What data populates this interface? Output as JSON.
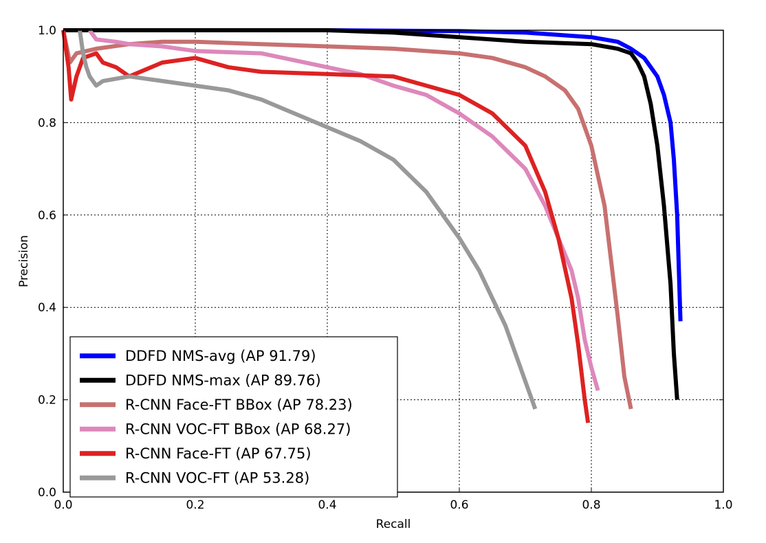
{
  "chart_data": {
    "type": "line",
    "title": "",
    "xlabel": "Recall",
    "ylabel": "Precision",
    "xlim": [
      0.0,
      1.0
    ],
    "ylim": [
      0.0,
      1.0
    ],
    "xticks": [
      "0.0",
      "0.2",
      "0.4",
      "0.6",
      "0.8",
      "1.0"
    ],
    "yticks": [
      "0.0",
      "0.2",
      "0.4",
      "0.6",
      "0.8",
      "1.0"
    ],
    "grid": true,
    "legend_position": "bottom-left",
    "series": [
      {
        "name": "DDFD NMS-avg (AP 91.79)",
        "color": "#0000ff",
        "x": [
          0.0,
          0.2,
          0.4,
          0.6,
          0.7,
          0.75,
          0.8,
          0.84,
          0.86,
          0.88,
          0.9,
          0.91,
          0.92,
          0.925,
          0.93,
          0.935
        ],
        "y": [
          1.0,
          1.0,
          1.0,
          0.998,
          0.995,
          0.99,
          0.985,
          0.975,
          0.96,
          0.94,
          0.9,
          0.86,
          0.8,
          0.72,
          0.6,
          0.37
        ]
      },
      {
        "name": "DDFD NMS-max (AP 89.76)",
        "color": "#000000",
        "x": [
          0.0,
          0.2,
          0.4,
          0.5,
          0.6,
          0.7,
          0.8,
          0.84,
          0.86,
          0.87,
          0.88,
          0.89,
          0.9,
          0.91,
          0.92,
          0.925,
          0.93
        ],
        "y": [
          1.0,
          1.0,
          1.0,
          0.995,
          0.985,
          0.975,
          0.97,
          0.96,
          0.95,
          0.93,
          0.9,
          0.84,
          0.75,
          0.62,
          0.45,
          0.3,
          0.2
        ]
      },
      {
        "name": "R-CNN Face-FT BBox (AP 78.23)",
        "color": "#c87070",
        "x": [
          0.0,
          0.01,
          0.02,
          0.05,
          0.1,
          0.15,
          0.2,
          0.3,
          0.4,
          0.5,
          0.6,
          0.65,
          0.7,
          0.73,
          0.76,
          0.78,
          0.8,
          0.82,
          0.83,
          0.84,
          0.85,
          0.86
        ],
        "y": [
          1.0,
          0.93,
          0.95,
          0.96,
          0.97,
          0.975,
          0.975,
          0.97,
          0.965,
          0.96,
          0.95,
          0.94,
          0.92,
          0.9,
          0.87,
          0.83,
          0.75,
          0.62,
          0.5,
          0.38,
          0.25,
          0.18
        ]
      },
      {
        "name": "R-CNN VOC-FT BBox (AP 68.27)",
        "color": "#dd88bb",
        "x": [
          0.04,
          0.05,
          0.08,
          0.1,
          0.15,
          0.2,
          0.3,
          0.35,
          0.4,
          0.45,
          0.5,
          0.55,
          0.6,
          0.65,
          0.7,
          0.73,
          0.75,
          0.77,
          0.78,
          0.79,
          0.8,
          0.81
        ],
        "y": [
          1.0,
          0.98,
          0.975,
          0.97,
          0.965,
          0.955,
          0.95,
          0.935,
          0.92,
          0.905,
          0.88,
          0.86,
          0.82,
          0.77,
          0.7,
          0.62,
          0.55,
          0.48,
          0.42,
          0.33,
          0.27,
          0.22
        ]
      },
      {
        "name": "R-CNN Face-FT (AP 67.75)",
        "color": "#dd2222",
        "x": [
          0.0,
          0.008,
          0.012,
          0.02,
          0.03,
          0.05,
          0.06,
          0.08,
          0.1,
          0.15,
          0.2,
          0.25,
          0.3,
          0.4,
          0.5,
          0.55,
          0.6,
          0.65,
          0.7,
          0.73,
          0.75,
          0.77,
          0.78,
          0.79,
          0.795
        ],
        "y": [
          1.0,
          0.92,
          0.85,
          0.9,
          0.94,
          0.95,
          0.93,
          0.92,
          0.9,
          0.93,
          0.94,
          0.92,
          0.91,
          0.905,
          0.9,
          0.88,
          0.86,
          0.82,
          0.75,
          0.65,
          0.55,
          0.42,
          0.32,
          0.2,
          0.15
        ]
      },
      {
        "name": "R-CNN VOC-FT (AP 53.28)",
        "color": "#999999",
        "x": [
          0.025,
          0.03,
          0.035,
          0.04,
          0.05,
          0.06,
          0.1,
          0.15,
          0.2,
          0.25,
          0.3,
          0.35,
          0.4,
          0.45,
          0.5,
          0.55,
          0.6,
          0.63,
          0.65,
          0.67,
          0.68,
          0.69,
          0.7,
          0.71,
          0.715
        ],
        "y": [
          1.0,
          0.95,
          0.92,
          0.9,
          0.88,
          0.89,
          0.9,
          0.89,
          0.88,
          0.87,
          0.85,
          0.82,
          0.79,
          0.76,
          0.72,
          0.65,
          0.55,
          0.48,
          0.42,
          0.36,
          0.32,
          0.28,
          0.24,
          0.2,
          0.18
        ]
      }
    ]
  }
}
